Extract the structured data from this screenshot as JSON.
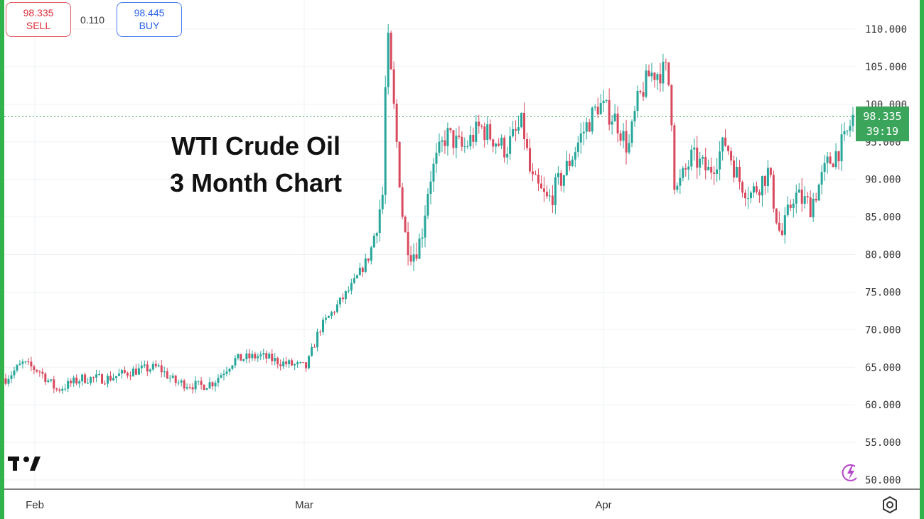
{
  "quote": {
    "sell_price": "98.335",
    "sell_label": "SELL",
    "spread": "0.110",
    "buy_price": "98.445",
    "buy_label": "BUY"
  },
  "current": {
    "price": "98.335",
    "countdown": "39:19"
  },
  "colors": {
    "up": "#26a69a",
    "down": "#d9495e",
    "accent": "#3ca55c",
    "frame": "#2fb34a"
  },
  "icons": [
    "tradingview-logo",
    "bolt-icon",
    "settings-icon"
  ],
  "chart_data": {
    "type": "candlestick",
    "title": "WTI Crude Oil",
    "subtitle": "3 Month Chart",
    "ylim": [
      48.5,
      113.5
    ],
    "yticks": [
      "50.000",
      "55.000",
      "60.000",
      "65.000",
      "70.000",
      "75.000",
      "80.000",
      "85.000",
      "90.000",
      "95.000",
      "100.000",
      "105.000",
      "110.000"
    ],
    "ytick_values": [
      50,
      55,
      60,
      65,
      70,
      75,
      80,
      85,
      90,
      95,
      100,
      105,
      110
    ],
    "xticks": [
      "Feb",
      "Mar",
      "Apr"
    ],
    "last_price": 98.335,
    "grid": true,
    "closes_trend": [
      {
        "x": 0.0,
        "y": 63.5
      },
      {
        "x": 0.02,
        "y": 65.5
      },
      {
        "x": 0.04,
        "y": 64.5
      },
      {
        "x": 0.06,
        "y": 62.0
      },
      {
        "x": 0.09,
        "y": 63.5
      },
      {
        "x": 0.12,
        "y": 63.5
      },
      {
        "x": 0.15,
        "y": 64.5
      },
      {
        "x": 0.18,
        "y": 65.0
      },
      {
        "x": 0.2,
        "y": 63.0
      },
      {
        "x": 0.23,
        "y": 62.5
      },
      {
        "x": 0.245,
        "y": 63.0
      },
      {
        "x": 0.27,
        "y": 66.0
      },
      {
        "x": 0.3,
        "y": 66.5
      },
      {
        "x": 0.33,
        "y": 65.5
      },
      {
        "x": 0.355,
        "y": 65.0
      },
      {
        "x": 0.37,
        "y": 70.0
      },
      {
        "x": 0.39,
        "y": 73.0
      },
      {
        "x": 0.41,
        "y": 76.0
      },
      {
        "x": 0.43,
        "y": 80.0
      },
      {
        "x": 0.445,
        "y": 88.0
      },
      {
        "x": 0.45,
        "y": 110.0
      },
      {
        "x": 0.46,
        "y": 97.0
      },
      {
        "x": 0.47,
        "y": 83.0
      },
      {
        "x": 0.48,
        "y": 80.0
      },
      {
        "x": 0.49,
        "y": 82.0
      },
      {
        "x": 0.5,
        "y": 90.0
      },
      {
        "x": 0.52,
        "y": 96.0
      },
      {
        "x": 0.54,
        "y": 94.0
      },
      {
        "x": 0.56,
        "y": 97.0
      },
      {
        "x": 0.59,
        "y": 94.0
      },
      {
        "x": 0.61,
        "y": 97.5
      },
      {
        "x": 0.62,
        "y": 90.0
      },
      {
        "x": 0.64,
        "y": 87.0
      },
      {
        "x": 0.66,
        "y": 91.0
      },
      {
        "x": 0.68,
        "y": 96.0
      },
      {
        "x": 0.7,
        "y": 100.0
      },
      {
        "x": 0.72,
        "y": 98.0
      },
      {
        "x": 0.735,
        "y": 94.0
      },
      {
        "x": 0.745,
        "y": 100.0
      },
      {
        "x": 0.76,
        "y": 104.0
      },
      {
        "x": 0.78,
        "y": 104.5
      },
      {
        "x": 0.785,
        "y": 101.0
      },
      {
        "x": 0.79,
        "y": 88.0
      },
      {
        "x": 0.81,
        "y": 93.0
      },
      {
        "x": 0.83,
        "y": 91.0
      },
      {
        "x": 0.85,
        "y": 95.0
      },
      {
        "x": 0.865,
        "y": 90.0
      },
      {
        "x": 0.88,
        "y": 88.0
      },
      {
        "x": 0.9,
        "y": 91.0
      },
      {
        "x": 0.915,
        "y": 82.0
      },
      {
        "x": 0.93,
        "y": 88.0
      },
      {
        "x": 0.95,
        "y": 86.5
      },
      {
        "x": 0.97,
        "y": 92.0
      },
      {
        "x": 0.99,
        "y": 95.0
      },
      {
        "x": 1.0,
        "y": 98.3
      }
    ]
  }
}
